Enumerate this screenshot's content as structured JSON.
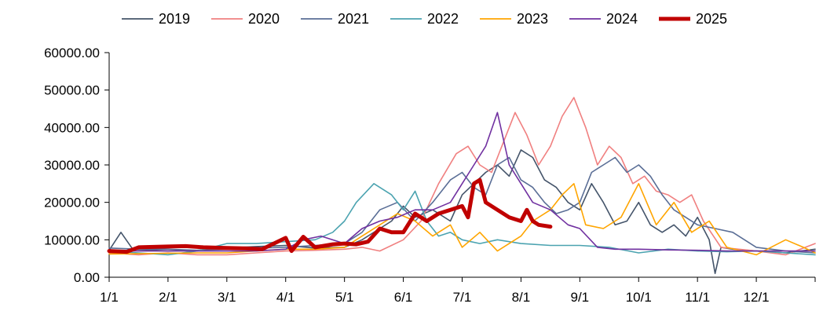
{
  "chart_data": {
    "type": "line",
    "title": "",
    "xlabel": "",
    "ylabel": "",
    "x_ticks": [
      "1/1",
      "2/1",
      "3/1",
      "4/1",
      "5/1",
      "6/1",
      "7/1",
      "8/1",
      "9/1",
      "10/1",
      "11/1",
      "12/1"
    ],
    "y_ticks": [
      "0.00",
      "10000.00",
      "20000.00",
      "30000.00",
      "40000.00",
      "50000.00",
      "60000.00"
    ],
    "ylim": [
      0,
      60000
    ],
    "x_unit": "month (1 = Jan 1, 13 = end of Dec)",
    "xlim": [
      1,
      13
    ],
    "grid": false,
    "legend_position": "top",
    "series": [
      {
        "name": "2019",
        "color": "#44546A",
        "values": [
          [
            1.0,
            7200
          ],
          [
            1.2,
            12000
          ],
          [
            1.4,
            7500
          ],
          [
            2.0,
            7000
          ],
          [
            2.5,
            7200
          ],
          [
            3.0,
            7800
          ],
          [
            3.5,
            8200
          ],
          [
            4.0,
            8500
          ],
          [
            4.5,
            7800
          ],
          [
            5.0,
            8000
          ],
          [
            5.3,
            10000
          ],
          [
            5.6,
            13000
          ],
          [
            5.8,
            15000
          ],
          [
            6.0,
            19000
          ],
          [
            6.2,
            16000
          ],
          [
            6.5,
            18000
          ],
          [
            6.8,
            15000
          ],
          [
            7.0,
            22000
          ],
          [
            7.2,
            25000
          ],
          [
            7.4,
            28000
          ],
          [
            7.6,
            30000
          ],
          [
            7.8,
            27000
          ],
          [
            8.0,
            34000
          ],
          [
            8.2,
            32000
          ],
          [
            8.4,
            26000
          ],
          [
            8.6,
            24000
          ],
          [
            8.8,
            20000
          ],
          [
            9.0,
            18000
          ],
          [
            9.2,
            25000
          ],
          [
            9.4,
            20000
          ],
          [
            9.6,
            14000
          ],
          [
            9.8,
            15000
          ],
          [
            10.0,
            20000
          ],
          [
            10.2,
            14000
          ],
          [
            10.4,
            12000
          ],
          [
            10.6,
            14000
          ],
          [
            10.8,
            11000
          ],
          [
            11.0,
            16000
          ],
          [
            11.2,
            10000
          ],
          [
            11.3,
            1000
          ],
          [
            11.4,
            8000
          ],
          [
            11.6,
            7500
          ],
          [
            12.0,
            7000
          ],
          [
            12.5,
            6500
          ],
          [
            13.0,
            7500
          ]
        ]
      },
      {
        "name": "2020",
        "color": "#F08080",
        "values": [
          [
            1.0,
            6500
          ],
          [
            1.5,
            6000
          ],
          [
            2.0,
            6500
          ],
          [
            2.5,
            6000
          ],
          [
            3.0,
            6000
          ],
          [
            3.5,
            6500
          ],
          [
            4.0,
            7000
          ],
          [
            4.5,
            7200
          ],
          [
            5.0,
            7500
          ],
          [
            5.3,
            8000
          ],
          [
            5.6,
            7000
          ],
          [
            6.0,
            10000
          ],
          [
            6.3,
            15000
          ],
          [
            6.6,
            25000
          ],
          [
            6.9,
            33000
          ],
          [
            7.1,
            35000
          ],
          [
            7.3,
            30000
          ],
          [
            7.5,
            28000
          ],
          [
            7.7,
            36000
          ],
          [
            7.9,
            44000
          ],
          [
            8.1,
            38000
          ],
          [
            8.3,
            30000
          ],
          [
            8.5,
            35000
          ],
          [
            8.7,
            43000
          ],
          [
            8.9,
            48000
          ],
          [
            9.1,
            40000
          ],
          [
            9.3,
            30000
          ],
          [
            9.5,
            35000
          ],
          [
            9.7,
            32000
          ],
          [
            9.9,
            25000
          ],
          [
            10.1,
            27000
          ],
          [
            10.3,
            23000
          ],
          [
            10.5,
            22000
          ],
          [
            10.7,
            20000
          ],
          [
            10.9,
            22000
          ],
          [
            11.1,
            15000
          ],
          [
            11.4,
            8000
          ],
          [
            11.7,
            7500
          ],
          [
            12.0,
            7000
          ],
          [
            12.5,
            6000
          ],
          [
            13.0,
            9000
          ]
        ]
      },
      {
        "name": "2021",
        "color": "#5A6E96",
        "values": [
          [
            1.0,
            7800
          ],
          [
            1.5,
            7500
          ],
          [
            2.0,
            7500
          ],
          [
            2.5,
            7200
          ],
          [
            3.0,
            7500
          ],
          [
            3.5,
            7800
          ],
          [
            4.0,
            8000
          ],
          [
            4.5,
            8500
          ],
          [
            5.0,
            9000
          ],
          [
            5.3,
            12000
          ],
          [
            5.6,
            18000
          ],
          [
            5.9,
            20000
          ],
          [
            6.2,
            15000
          ],
          [
            6.5,
            20000
          ],
          [
            6.8,
            26000
          ],
          [
            7.0,
            28000
          ],
          [
            7.2,
            24000
          ],
          [
            7.4,
            22000
          ],
          [
            7.6,
            30000
          ],
          [
            7.8,
            32000
          ],
          [
            8.0,
            26000
          ],
          [
            8.2,
            24000
          ],
          [
            8.4,
            20000
          ],
          [
            8.6,
            17000
          ],
          [
            8.8,
            18000
          ],
          [
            9.0,
            20000
          ],
          [
            9.2,
            28000
          ],
          [
            9.4,
            30000
          ],
          [
            9.6,
            32000
          ],
          [
            9.8,
            28000
          ],
          [
            10.0,
            30000
          ],
          [
            10.2,
            27000
          ],
          [
            10.4,
            22000
          ],
          [
            10.6,
            18000
          ],
          [
            10.8,
            16000
          ],
          [
            11.0,
            14000
          ],
          [
            11.3,
            13000
          ],
          [
            11.6,
            12000
          ],
          [
            12.0,
            8000
          ],
          [
            12.5,
            7000
          ],
          [
            13.0,
            6500
          ]
        ]
      },
      {
        "name": "2022",
        "color": "#4BA3B0",
        "values": [
          [
            1.0,
            7000
          ],
          [
            1.5,
            6500
          ],
          [
            2.0,
            6000
          ],
          [
            2.5,
            7000
          ],
          [
            3.0,
            9000
          ],
          [
            3.5,
            9000
          ],
          [
            4.0,
            9500
          ],
          [
            4.5,
            10000
          ],
          [
            4.8,
            12000
          ],
          [
            5.0,
            15000
          ],
          [
            5.2,
            20000
          ],
          [
            5.5,
            25000
          ],
          [
            5.8,
            22000
          ],
          [
            6.0,
            18000
          ],
          [
            6.2,
            23000
          ],
          [
            6.4,
            15000
          ],
          [
            6.6,
            11000
          ],
          [
            6.8,
            12000
          ],
          [
            7.0,
            10000
          ],
          [
            7.3,
            9000
          ],
          [
            7.6,
            10000
          ],
          [
            8.0,
            9000
          ],
          [
            8.5,
            8500
          ],
          [
            9.0,
            8500
          ],
          [
            9.5,
            8000
          ],
          [
            10.0,
            6500
          ],
          [
            10.5,
            7500
          ],
          [
            11.0,
            7000
          ],
          [
            11.5,
            6800
          ],
          [
            12.0,
            7000
          ],
          [
            12.5,
            6500
          ],
          [
            13.0,
            6000
          ]
        ]
      },
      {
        "name": "2023",
        "color": "#FFA500",
        "values": [
          [
            1.0,
            6200
          ],
          [
            1.5,
            6300
          ],
          [
            2.0,
            6400
          ],
          [
            2.5,
            6500
          ],
          [
            3.0,
            6500
          ],
          [
            3.5,
            7000
          ],
          [
            4.0,
            7500
          ],
          [
            4.5,
            7500
          ],
          [
            5.0,
            8000
          ],
          [
            5.3,
            11000
          ],
          [
            5.6,
            14000
          ],
          [
            5.9,
            17000
          ],
          [
            6.2,
            15000
          ],
          [
            6.5,
            11000
          ],
          [
            6.8,
            14000
          ],
          [
            7.0,
            8000
          ],
          [
            7.3,
            12000
          ],
          [
            7.6,
            7000
          ],
          [
            8.0,
            11000
          ],
          [
            8.2,
            15000
          ],
          [
            8.5,
            18000
          ],
          [
            8.7,
            22000
          ],
          [
            8.9,
            25000
          ],
          [
            9.1,
            14000
          ],
          [
            9.4,
            13000
          ],
          [
            9.7,
            16000
          ],
          [
            10.0,
            25000
          ],
          [
            10.3,
            14000
          ],
          [
            10.6,
            20000
          ],
          [
            10.9,
            12000
          ],
          [
            11.2,
            15000
          ],
          [
            11.5,
            8000
          ],
          [
            12.0,
            6000
          ],
          [
            12.5,
            10000
          ],
          [
            12.8,
            8000
          ],
          [
            13.0,
            6500
          ]
        ]
      },
      {
        "name": "2024",
        "color": "#7030A0",
        "values": [
          [
            1.0,
            7000
          ],
          [
            1.5,
            7000
          ],
          [
            2.0,
            7000
          ],
          [
            2.5,
            7000
          ],
          [
            3.0,
            7000
          ],
          [
            3.5,
            7000
          ],
          [
            4.0,
            7500
          ],
          [
            4.3,
            10000
          ],
          [
            4.6,
            11000
          ],
          [
            5.0,
            9000
          ],
          [
            5.3,
            13000
          ],
          [
            5.6,
            15000
          ],
          [
            5.9,
            16000
          ],
          [
            6.2,
            18000
          ],
          [
            6.5,
            18000
          ],
          [
            6.8,
            20000
          ],
          [
            7.0,
            25000
          ],
          [
            7.2,
            30000
          ],
          [
            7.4,
            35000
          ],
          [
            7.6,
            44000
          ],
          [
            7.8,
            30000
          ],
          [
            8.0,
            25000
          ],
          [
            8.2,
            20000
          ],
          [
            8.5,
            18000
          ],
          [
            8.8,
            14000
          ],
          [
            9.0,
            13000
          ],
          [
            9.3,
            8000
          ],
          [
            9.6,
            7500
          ],
          [
            10.0,
            7500
          ],
          [
            10.5,
            7300
          ],
          [
            11.0,
            7200
          ],
          [
            11.5,
            7000
          ],
          [
            12.0,
            7000
          ],
          [
            12.5,
            7000
          ],
          [
            13.0,
            7000
          ]
        ]
      },
      {
        "name": "2025",
        "color": "#C00000",
        "values": [
          [
            1.0,
            7000
          ],
          [
            1.3,
            6800
          ],
          [
            1.5,
            8000
          ],
          [
            2.0,
            8200
          ],
          [
            2.3,
            8300
          ],
          [
            2.6,
            8000
          ],
          [
            3.0,
            7800
          ],
          [
            3.3,
            7700
          ],
          [
            3.6,
            7500
          ],
          [
            4.0,
            10500
          ],
          [
            4.1,
            7000
          ],
          [
            4.3,
            10800
          ],
          [
            4.5,
            8000
          ],
          [
            4.8,
            8800
          ],
          [
            5.0,
            9000
          ],
          [
            5.2,
            8800
          ],
          [
            5.4,
            9500
          ],
          [
            5.6,
            13000
          ],
          [
            5.8,
            12000
          ],
          [
            6.0,
            12000
          ],
          [
            6.2,
            17000
          ],
          [
            6.4,
            15000
          ],
          [
            6.6,
            17000
          ],
          [
            6.8,
            18000
          ],
          [
            7.0,
            19000
          ],
          [
            7.1,
            16000
          ],
          [
            7.2,
            25000
          ],
          [
            7.3,
            26000
          ],
          [
            7.4,
            20000
          ],
          [
            7.6,
            18000
          ],
          [
            7.8,
            16000
          ],
          [
            8.0,
            15000
          ],
          [
            8.1,
            18000
          ],
          [
            8.2,
            15000
          ],
          [
            8.3,
            14000
          ],
          [
            8.5,
            13500
          ]
        ]
      }
    ]
  }
}
